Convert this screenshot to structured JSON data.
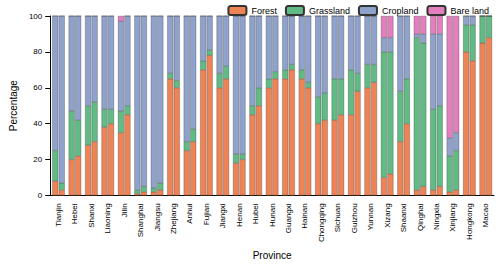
{
  "chart_data": {
    "type": "bar",
    "stacked": true,
    "legend": "upper right",
    "x_label": "Province",
    "y_label": "Percentage",
    "categories": [
      "Tianjin",
      "Hebei",
      "Shanxi",
      "Liaoning",
      "Jilin",
      "Shanghai",
      "Jiangsu",
      "Zhejiang",
      "Anhui",
      "Fujian",
      "Jiangxi",
      "Henan",
      "Hubei",
      "Hunan",
      "Guangxi",
      "Hainan",
      "Chongqing",
      "Sichuan",
      "Guizhou",
      "Yunnan",
      "Xizang",
      "Shaanxi",
      "Qinghai",
      "Ningxia",
      "Xinjiang",
      "Hongkong",
      "Macao"
    ],
    "series": [
      {
        "name": "Forest",
        "color": "#ee8455",
        "values": [
          [
            8,
            3
          ],
          [
            20,
            22
          ],
          [
            28,
            30
          ],
          [
            38,
            40
          ],
          [
            35,
            45
          ],
          [
            1,
            2
          ],
          [
            2,
            3
          ],
          [
            65,
            60
          ],
          [
            25,
            30
          ],
          [
            70,
            78
          ],
          [
            60,
            65
          ],
          [
            18,
            20
          ],
          [
            45,
            50
          ],
          [
            60,
            65
          ],
          [
            65,
            70
          ],
          [
            65,
            60
          ],
          [
            40,
            42
          ],
          [
            42,
            45
          ],
          [
            45,
            58
          ],
          [
            60,
            63
          ],
          [
            10,
            12
          ],
          [
            30,
            40
          ],
          [
            3,
            5
          ],
          [
            3,
            5
          ],
          [
            2,
            3
          ],
          [
            80,
            75
          ],
          [
            85,
            88
          ]
        ]
      },
      {
        "name": "Grassland",
        "color": "#62bb85",
        "values": [
          [
            17,
            4
          ],
          [
            27,
            20
          ],
          [
            22,
            22
          ],
          [
            10,
            8
          ],
          [
            12,
            5
          ],
          [
            2,
            3
          ],
          [
            2,
            4
          ],
          [
            3,
            4
          ],
          [
            5,
            7
          ],
          [
            5,
            3
          ],
          [
            8,
            7
          ],
          [
            5,
            3
          ],
          [
            5,
            10
          ],
          [
            5,
            4
          ],
          [
            5,
            3
          ],
          [
            5,
            3
          ],
          [
            15,
            15
          ],
          [
            23,
            20
          ],
          [
            25,
            10
          ],
          [
            13,
            10
          ],
          [
            70,
            68
          ],
          [
            28,
            25
          ],
          [
            85,
            80
          ],
          [
            45,
            45
          ],
          [
            20,
            22
          ],
          [
            15,
            20
          ],
          [
            15,
            12
          ]
        ]
      },
      {
        "name": "Cropland",
        "color": "#8fa2cb",
        "values": [
          [
            75,
            93
          ],
          [
            53,
            58
          ],
          [
            50,
            48
          ],
          [
            52,
            52
          ],
          [
            50,
            50
          ],
          [
            97,
            95
          ],
          [
            96,
            93
          ],
          [
            32,
            36
          ],
          [
            70,
            63
          ],
          [
            25,
            19
          ],
          [
            32,
            28
          ],
          [
            77,
            77
          ],
          [
            50,
            40
          ],
          [
            35,
            31
          ],
          [
            30,
            27
          ],
          [
            30,
            37
          ],
          [
            45,
            43
          ],
          [
            35,
            35
          ],
          [
            30,
            32
          ],
          [
            27,
            27
          ],
          [
            8,
            8
          ],
          [
            42,
            35
          ],
          [
            2,
            5
          ],
          [
            42,
            40
          ],
          [
            10,
            10
          ],
          [
            5,
            5
          ],
          [
            0,
            0
          ]
        ]
      },
      {
        "name": "Bare land",
        "color": "#e47fbd",
        "values": [
          [
            0,
            0
          ],
          [
            0,
            0
          ],
          [
            0,
            0
          ],
          [
            0,
            0
          ],
          [
            3,
            0
          ],
          [
            0,
            0
          ],
          [
            0,
            0
          ],
          [
            0,
            0
          ],
          [
            0,
            0
          ],
          [
            0,
            0
          ],
          [
            0,
            0
          ],
          [
            0,
            0
          ],
          [
            0,
            0
          ],
          [
            0,
            0
          ],
          [
            0,
            0
          ],
          [
            0,
            0
          ],
          [
            0,
            0
          ],
          [
            0,
            0
          ],
          [
            0,
            0
          ],
          [
            0,
            0
          ],
          [
            12,
            12
          ],
          [
            0,
            0
          ],
          [
            10,
            10
          ],
          [
            10,
            10
          ],
          [
            68,
            65
          ],
          [
            0,
            0
          ],
          [
            0,
            0
          ]
        ]
      }
    ],
    "ylim": [
      0,
      100
    ],
    "yticks": [
      0,
      20,
      40,
      60,
      80,
      100
    ]
  }
}
